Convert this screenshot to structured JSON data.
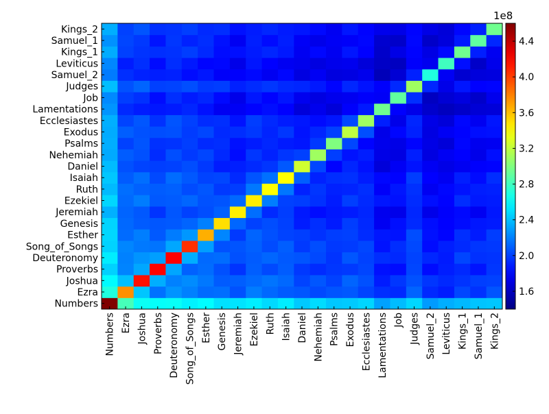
{
  "chart_data": {
    "type": "heatmap",
    "title": "",
    "xlabel": "",
    "ylabel": "",
    "x_categories": [
      "Numbers",
      "Ezra",
      "Joshua",
      "Proverbs",
      "Deuteronomy",
      "Song_of_Songs",
      "Esther",
      "Genesis",
      "Jeremiah",
      "Ezekiel",
      "Ruth",
      "Isaiah",
      "Daniel",
      "Nehemiah",
      "Psalms",
      "Exodus",
      "Ecclesiastes",
      "Lamentations",
      "Job",
      "Judges",
      "Samuel_2",
      "Leviticus",
      "Kings_1",
      "Samuel_1",
      "Kings_2"
    ],
    "y_categories_bottom_to_top": [
      "Numbers",
      "Ezra",
      "Joshua",
      "Proverbs",
      "Deuteronomy",
      "Song_of_Songs",
      "Esther",
      "Genesis",
      "Jeremiah",
      "Ezekiel",
      "Ruth",
      "Isaiah",
      "Daniel",
      "Nehemiah",
      "Psalms",
      "Exodus",
      "Ecclesiastes",
      "Lamentations",
      "Job",
      "Judges",
      "Samuel_2",
      "Leviticus",
      "Kings_1",
      "Samuel_1",
      "Kings_2"
    ],
    "diagonal": [
      4.6,
      3.75,
      4.15,
      4.2,
      4.2,
      4.05,
      3.65,
      3.5,
      3.45,
      3.45,
      3.4,
      3.4,
      3.25,
      3.1,
      3.0,
      3.2,
      3.1,
      2.95,
      2.9,
      3.1,
      2.7,
      2.8,
      2.95,
      2.9,
      2.95
    ],
    "level": [
      2.45,
      2.25,
      2.25,
      2.1,
      2.2,
      2.15,
      2.1,
      2.0,
      1.9,
      2.05,
      2.0,
      2.0,
      1.85,
      1.85,
      1.8,
      1.9,
      1.85,
      1.6,
      1.65,
      1.9,
      1.6,
      1.6,
      1.75,
      1.7,
      1.8
    ],
    "numbers_row_boost": 0.3,
    "numbers_col_boost": 0.2,
    "colorbar": {
      "min": 1.4,
      "max": 4.6,
      "ticks": [
        1.6,
        2.0,
        2.4,
        2.8,
        3.2,
        3.6,
        4.0,
        4.4
      ],
      "tick_labels": [
        "1.6",
        "2.0",
        "2.4",
        "2.8",
        "3.2",
        "3.6",
        "4.0",
        "4.4"
      ],
      "offset_label": "1e8",
      "colormap": "jet"
    }
  }
}
